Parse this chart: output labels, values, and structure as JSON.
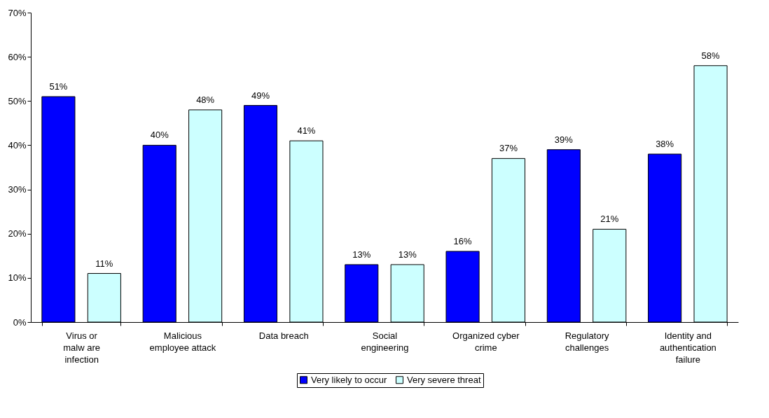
{
  "chart_data": {
    "type": "bar",
    "categories": [
      "Virus or\nmalw are\ninfection",
      "Malicious\nemployee attack",
      "Data breach",
      "Social\nengineering",
      "Organized cyber\ncrime",
      "Regulatory\nchallenges",
      "Identity and\nauthentication\nfailure"
    ],
    "series": [
      {
        "name": "Very likely to occur",
        "color": "#0000ff",
        "values": [
          51,
          40,
          49,
          13,
          16,
          39,
          38
        ],
        "value_labels": [
          "51%",
          "40%",
          "49%",
          "13%",
          "16%",
          "39%",
          "38%"
        ]
      },
      {
        "name": "Very severe threat",
        "color": "#ccffff",
        "values": [
          11,
          48,
          41,
          13,
          37,
          21,
          58
        ],
        "value_labels": [
          "11%",
          "48%",
          "41%",
          "13%",
          "37%",
          "21%",
          "58%"
        ]
      }
    ],
    "ylim": [
      0,
      70
    ],
    "yticks": [
      {
        "value": 0,
        "label": "0%"
      },
      {
        "value": 10,
        "label": "10%"
      },
      {
        "value": 20,
        "label": "20%"
      },
      {
        "value": 30,
        "label": "30%"
      },
      {
        "value": 40,
        "label": "40%"
      },
      {
        "value": 50,
        "label": "50%"
      },
      {
        "value": 60,
        "label": "60%"
      },
      {
        "value": 70,
        "label": "70%"
      }
    ],
    "grid": false,
    "legend": "bottom"
  }
}
